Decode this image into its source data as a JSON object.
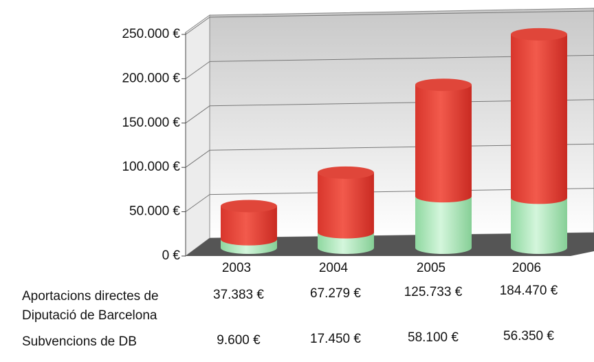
{
  "chart_data": {
    "type": "bar3d-stacked",
    "categories": [
      "2003",
      "2004",
      "2005",
      "2006"
    ],
    "series": [
      {
        "name": "Subvencions  de DB",
        "color": "#a8e6b4",
        "values": [
          9600,
          17450,
          58100,
          56350
        ],
        "value_labels": [
          "9.600 €",
          "17.450 €",
          "58.100 €",
          "56.350 €"
        ]
      },
      {
        "name": "Aportacions directes de Diputació de Barcelona",
        "color": "#e8463a",
        "values": [
          37383,
          67279,
          125733,
          184470
        ],
        "value_labels": [
          "37.383 €",
          "67.279 €",
          "125.733 €",
          "184.470 €"
        ]
      }
    ],
    "ylim": [
      0,
      250000
    ],
    "yticks": [
      {
        "value": 0,
        "label": "0 €"
      },
      {
        "value": 50000,
        "label": "50.000 €"
      },
      {
        "value": 100000,
        "label": "100.000 €"
      },
      {
        "value": 150000,
        "label": "150.000 €"
      },
      {
        "value": 200000,
        "label": "200.000 €"
      },
      {
        "value": 250000,
        "label": "250.000 €"
      }
    ],
    "grid": true
  }
}
